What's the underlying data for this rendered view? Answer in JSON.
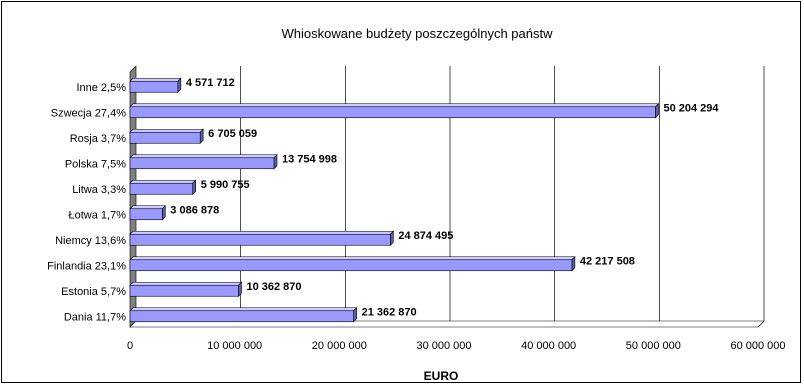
{
  "chart_data": {
    "type": "bar",
    "orientation": "horizontal",
    "title": "Whioskowane budżety poszczególnych państw",
    "xlabel": "EURO",
    "categories": [
      "Dania 11,7%",
      "Estonia 5,7%",
      "Finlandia 23,1%",
      "Niemcy 13,6%",
      "Łotwa 1,7%",
      "Litwa 3,3%",
      "Polska 7,5%",
      "Rosja 3,7%",
      "Szwecja 27,4%",
      "Inne 2,5%"
    ],
    "values": [
      21362870,
      10362870,
      42217508,
      24874495,
      3086878,
      5990755,
      13754998,
      6705059,
      50204294,
      4571712
    ],
    "value_labels": [
      "21 362 870",
      "10 362 870",
      "42 217 508",
      "24 874 495",
      "3 086 878",
      "5 990 755",
      "13 754 998",
      "6 705 059",
      "50 204 294",
      "4 571 712"
    ],
    "xlim": [
      0,
      60000000
    ],
    "xticks": [
      0,
      10000000,
      20000000,
      30000000,
      40000000,
      50000000,
      60000000
    ],
    "xtick_labels": [
      "0",
      "10 000 000",
      "20 000 000",
      "30 000 000",
      "40 000 000",
      "50 000 000",
      "60 000 000"
    ],
    "grid": true,
    "bar_color": "#9999ff",
    "bar_top_color": "#ccccff",
    "bar_side_color": "#5c5cb0",
    "wall_color": "#808080"
  }
}
